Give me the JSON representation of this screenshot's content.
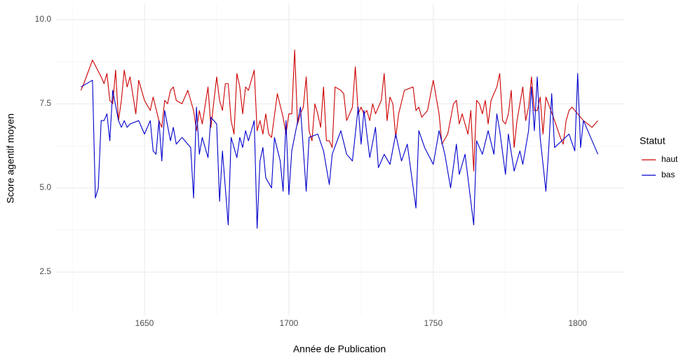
{
  "chart_data": {
    "type": "line",
    "x_label": "Année de Publication",
    "y_label": "Score agentif moyen",
    "legend_title": "Statut",
    "legend_position": "right",
    "grid": true,
    "xlim": [
      1619.4,
      1816.1
    ],
    "ylim": [
      1.21,
      10.48
    ],
    "xticks": [
      1650,
      1700,
      1750,
      1800
    ],
    "yticks": [
      {
        "value": 2.5,
        "label": "2.5"
      },
      {
        "value": 5,
        "label": "5.0"
      },
      {
        "value": 7.5,
        "label": "7.5"
      },
      {
        "value": 10,
        "label": "10.0"
      }
    ],
    "x_minor_ticks": [
      1625,
      1675,
      1725,
      1775
    ],
    "y_minor_ticks": [
      3.75,
      6.25,
      8.75
    ],
    "series": [
      {
        "name": "haut",
        "color": "#cc0000",
        "x": [
          1628,
          1629,
          1632,
          1635,
          1636,
          1637,
          1638,
          1639,
          1640,
          1641,
          1642,
          1643,
          1644,
          1645,
          1647,
          1648,
          1650,
          1652,
          1653,
          1655,
          1656,
          1657,
          1658,
          1659,
          1660,
          1661,
          1663,
          1665,
          1667,
          1668,
          1669,
          1670,
          1672,
          1673,
          1675,
          1676,
          1677,
          1678,
          1679,
          1680,
          1681,
          1682,
          1683,
          1684,
          1685,
          1686,
          1688,
          1689,
          1690,
          1691,
          1692,
          1693,
          1694,
          1696,
          1698,
          1699,
          1700,
          1701,
          1702,
          1703,
          1704,
          1705,
          1706,
          1707,
          1708,
          1709,
          1710,
          1711,
          1712,
          1713,
          1714,
          1715,
          1716,
          1718,
          1719,
          1720,
          1722,
          1723,
          1724,
          1725,
          1726,
          1727,
          1728,
          1729,
          1730,
          1732,
          1733,
          1734,
          1735,
          1736,
          1737,
          1738,
          1740,
          1743,
          1744,
          1745,
          1746,
          1747,
          1748,
          1750,
          1752,
          1753,
          1755,
          1757,
          1758,
          1759,
          1760,
          1762,
          1763,
          1764,
          1765,
          1766,
          1767,
          1768,
          1769,
          1770,
          1772,
          1773,
          1774,
          1775,
          1776,
          1777,
          1778,
          1779,
          1780,
          1781,
          1782,
          1783,
          1784,
          1785,
          1786,
          1787,
          1788,
          1789,
          1792,
          1794,
          1795,
          1796,
          1797,
          1798,
          1800,
          1802,
          1805,
          1807
        ],
        "values": [
          7.9,
          8.1,
          8.8,
          8.3,
          8.1,
          8.4,
          7.6,
          7.5,
          8.5,
          7.0,
          7.6,
          8.5,
          8.0,
          8.3,
          7.2,
          8.2,
          7.6,
          7.3,
          7.7,
          7.0,
          6.8,
          7.6,
          7.5,
          7.9,
          8.0,
          7.6,
          7.5,
          7.9,
          7.3,
          6.7,
          7.3,
          6.9,
          8.0,
          6.8,
          8.3,
          7.6,
          7.3,
          8.1,
          8.1,
          7.0,
          6.6,
          8.4,
          8.0,
          7.2,
          8.0,
          7.9,
          8.5,
          6.7,
          7.0,
          6.6,
          7.2,
          6.6,
          6.5,
          7.8,
          7.1,
          6.6,
          7.2,
          7.2,
          9.1,
          6.9,
          7.2,
          7.4,
          8.3,
          6.7,
          6.4,
          7.5,
          7.2,
          6.8,
          8.0,
          6.4,
          6.4,
          6.2,
          8.0,
          7.9,
          7.8,
          7.0,
          7.4,
          8.6,
          7.2,
          7.4,
          7.2,
          7.3,
          7.0,
          7.5,
          7.2,
          7.6,
          8.4,
          7.0,
          7.7,
          7.5,
          6.5,
          7.2,
          7.9,
          8.0,
          7.3,
          7.4,
          7.1,
          7.2,
          7.3,
          8.2,
          7.2,
          6.3,
          6.6,
          7.5,
          7.6,
          6.9,
          7.2,
          6.6,
          7.3,
          5.5,
          7.6,
          7.5,
          7.2,
          7.6,
          6.9,
          7.6,
          8.0,
          8.4,
          7.0,
          6.9,
          7.2,
          7.9,
          6.2,
          7.0,
          7.5,
          8.0,
          7.0,
          7.4,
          8.3,
          7.3,
          7.3,
          7.7,
          6.6,
          7.7,
          7.0,
          6.5,
          6.3,
          7.0,
          7.3,
          7.4,
          7.2,
          7.0,
          6.8,
          7.0
        ]
      },
      {
        "name": "bas",
        "color": "#0000cc",
        "x": [
          1628,
          1632,
          1633,
          1634,
          1635,
          1636,
          1637,
          1638,
          1639,
          1641,
          1642,
          1643,
          1644,
          1645,
          1648,
          1650,
          1652,
          1653,
          1654,
          1655,
          1656,
          1657,
          1659,
          1660,
          1661,
          1663,
          1664,
          1666,
          1667,
          1668,
          1669,
          1670,
          1672,
          1673,
          1675,
          1676,
          1677,
          1679,
          1680,
          1682,
          1683,
          1684,
          1685,
          1686,
          1688,
          1689,
          1690,
          1691,
          1692,
          1694,
          1695,
          1697,
          1698,
          1699,
          1700,
          1701,
          1704,
          1706,
          1707,
          1710,
          1712,
          1714,
          1715,
          1718,
          1720,
          1722,
          1724,
          1725,
          1726,
          1728,
          1730,
          1731,
          1733,
          1735,
          1737,
          1739,
          1741,
          1744,
          1745,
          1747,
          1750,
          1752,
          1754,
          1756,
          1758,
          1759,
          1761,
          1764,
          1765,
          1767,
          1769,
          1771,
          1772,
          1773,
          1775,
          1776,
          1778,
          1780,
          1781,
          1783,
          1784,
          1785,
          1786,
          1787,
          1789,
          1790,
          1791,
          1792,
          1797,
          1799,
          1800,
          1801,
          1802,
          1807
        ],
        "values": [
          8.0,
          8.2,
          4.7,
          5.0,
          7.0,
          7.0,
          7.2,
          6.4,
          7.9,
          7.0,
          6.8,
          7.0,
          6.8,
          6.9,
          7.0,
          6.6,
          7.0,
          6.1,
          6.0,
          7.0,
          5.8,
          7.3,
          6.4,
          6.8,
          6.3,
          6.5,
          6.4,
          6.2,
          4.7,
          7.4,
          6.0,
          6.5,
          5.9,
          7.1,
          6.9,
          4.6,
          6.1,
          3.9,
          6.5,
          5.9,
          6.5,
          6.2,
          6.7,
          6.4,
          7.0,
          3.8,
          5.8,
          6.2,
          5.3,
          5.0,
          6.5,
          5.8,
          4.9,
          7.0,
          4.8,
          6.1,
          7.4,
          4.9,
          6.5,
          6.6,
          6.1,
          5.1,
          6.0,
          6.7,
          6.0,
          5.8,
          7.4,
          6.3,
          7.3,
          5.9,
          6.8,
          5.6,
          6.0,
          5.7,
          6.6,
          5.8,
          6.3,
          4.4,
          6.7,
          6.2,
          5.7,
          6.7,
          6.0,
          5.0,
          6.3,
          5.4,
          6.0,
          3.9,
          6.4,
          6.0,
          6.7,
          6.0,
          7.2,
          6.7,
          5.4,
          6.6,
          5.5,
          6.1,
          5.7,
          6.7,
          8.0,
          6.7,
          8.3,
          6.5,
          4.9,
          6.2,
          7.8,
          6.2,
          6.6,
          6.1,
          8.4,
          6.2,
          7.0,
          6.0
        ]
      }
    ]
  }
}
